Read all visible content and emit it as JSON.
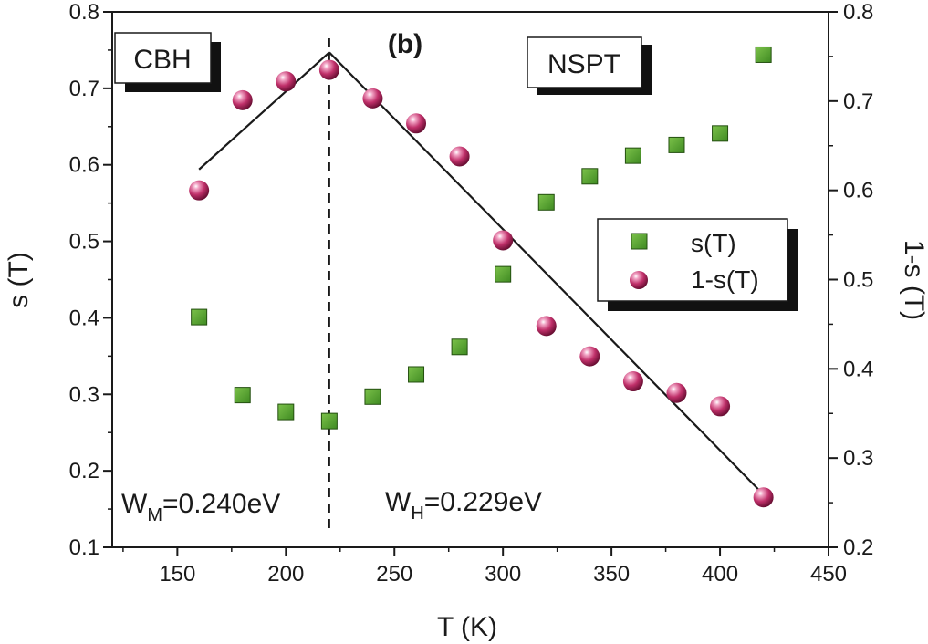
{
  "chart_data": {
    "type": "scatter",
    "panel_label": "(b)",
    "xlabel": "T (K)",
    "ylabel_left": "s (T)",
    "ylabel_right": "1-s (T)",
    "xlim": [
      120,
      450
    ],
    "ylim_left": [
      0.1,
      0.8
    ],
    "ylim_right": [
      0.2,
      0.8
    ],
    "x_ticks": [
      150,
      200,
      250,
      300,
      350,
      400,
      450
    ],
    "y_left_ticks": [
      0.1,
      0.2,
      0.3,
      0.4,
      0.5,
      0.6,
      0.7,
      0.8
    ],
    "y_right_ticks": [
      0.2,
      0.3,
      0.4,
      0.5,
      0.6,
      0.7,
      0.8
    ],
    "grid": false,
    "legend_position": "center-right",
    "series": [
      {
        "name": "s(T)",
        "axis": "left",
        "marker": "square",
        "color": "#4a9a2a",
        "x": [
          160,
          180,
          200,
          220,
          240,
          260,
          280,
          300,
          320,
          340,
          360,
          380,
          400,
          420
        ],
        "y": [
          0.401,
          0.299,
          0.277,
          0.265,
          0.297,
          0.326,
          0.362,
          0.457,
          0.551,
          0.585,
          0.612,
          0.626,
          0.641,
          0.744
        ]
      },
      {
        "name": "1-s(T)",
        "axis": "right",
        "marker": "sphere",
        "color": "#c0306a",
        "x": [
          160,
          180,
          200,
          220,
          240,
          260,
          280,
          300,
          320,
          340,
          360,
          380,
          400,
          420
        ],
        "y": [
          0.6,
          0.701,
          0.722,
          0.735,
          0.703,
          0.675,
          0.638,
          0.544,
          0.448,
          0.414,
          0.386,
          0.373,
          0.358,
          0.256
        ]
      }
    ],
    "fit_lines": [
      {
        "name": "CBH fit",
        "x": [
          160,
          220
        ],
        "y_left": [
          0.594,
          0.747
        ]
      },
      {
        "name": "NSPT fit",
        "x": [
          220,
          420
        ],
        "y_left": [
          0.747,
          0.169
        ]
      }
    ],
    "divider_x": 220,
    "boxes": {
      "cbh": "CBH",
      "nspt": "NSPT"
    },
    "annotations": {
      "wm": {
        "main": "W",
        "sub": "M",
        "value": "=0.240eV"
      },
      "wh": {
        "main": "W",
        "sub": "H",
        "value": "=0.229eV"
      }
    }
  },
  "colors": {
    "square": "#4a9a2a",
    "sphere": "#c0306a",
    "axis": "#1a1a1a"
  }
}
